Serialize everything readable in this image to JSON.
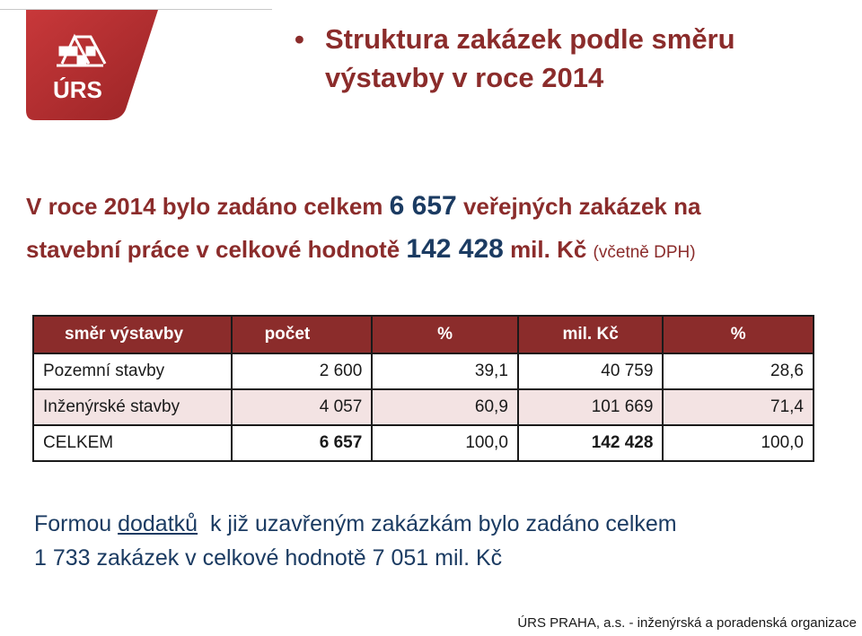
{
  "logo": {
    "text": "ÚRS"
  },
  "title": {
    "line1": "Struktura zakázek podle směru",
    "line2": "výstavby v roce 2014",
    "bullet": "•"
  },
  "summary": {
    "part1": "V roce 2014 bylo zadáno celkem ",
    "count": "6 657",
    "part2": " veřejných zakázek na",
    "part3": "stavební práce v celkové hodnotě ",
    "value": "142 428",
    "part4": " mil. Kč ",
    "vat": "(včetně DPH)"
  },
  "table": {
    "headers": [
      "směr výstavby",
      "počet",
      "%",
      "mil. Kč",
      "%"
    ],
    "rows": [
      [
        "Pozemní stavby",
        "2 600",
        "39,1",
        "40 759",
        "28,6"
      ],
      [
        "Inženýrské stavby",
        "4 057",
        "60,9",
        "101 669",
        "71,4"
      ],
      [
        "CELKEM",
        "6 657",
        "100,0",
        "142 428",
        "100,0"
      ]
    ]
  },
  "note": {
    "line1_a": "Formou ",
    "line1_u": "dodatků",
    "line1_b": "  k již uzavřeným zakázkám bylo zadáno celkem",
    "line2": "1 733 zakázek v celkové hodnotě 7 051 mil. Kč"
  },
  "footer": {
    "text": "ÚRS PRAHA, a.s. - inženýrská a poradenská organizace"
  },
  "colors": {
    "brand": "#8b2c2b",
    "navy": "#1b3b62",
    "alt_row": "#f3e3e3"
  }
}
